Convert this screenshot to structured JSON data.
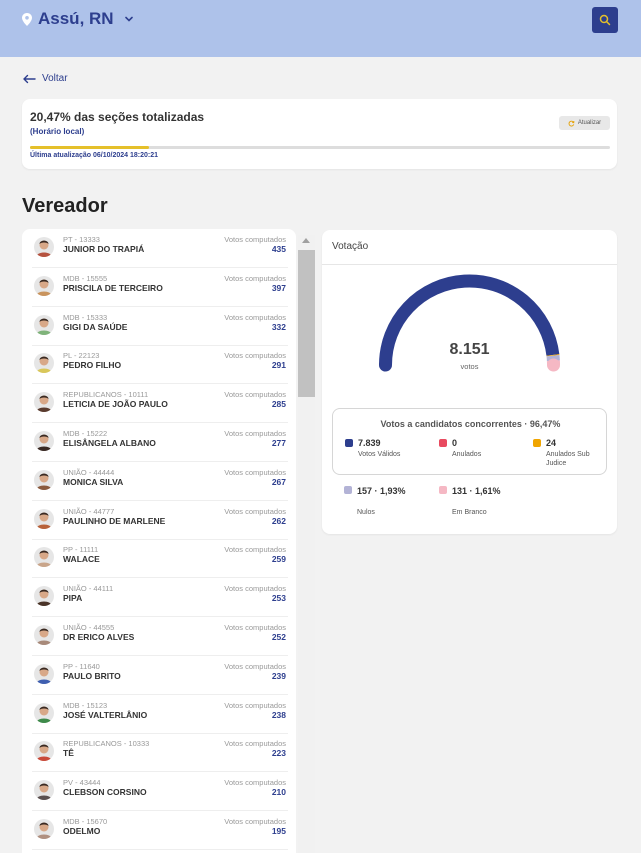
{
  "header": {
    "city": "Assú, RN",
    "icons": {
      "location": "map-pin-icon",
      "dropdown": "chevron-down-icon",
      "search": "search-icon"
    },
    "colors": {
      "brand": "#2d3e8e",
      "bar": "#aec2ea",
      "search_icon": "#e5c02a"
    }
  },
  "nav": {
    "back_label": "Voltar",
    "back_icon": "arrow-left-icon"
  },
  "status": {
    "title": "20,47% das seções totalizadas",
    "subtitle": "(Horário local)",
    "refresh_label": "Atualizar",
    "refresh_icon": "refresh-icon",
    "progress_fraction": 0.2047,
    "last_update": "Última atualização 06/10/2024 18:20:21"
  },
  "section": {
    "title": "Vereador"
  },
  "candidates": [
    {
      "party": "PT - 13333",
      "name": "JUNIOR DO TRAPIÁ",
      "votes_label": "Votos computados",
      "votes": "435",
      "avatar_color": "#b5523f"
    },
    {
      "party": "MDB - 15555",
      "name": "PRISCILA DE TERCEIRO",
      "votes_label": "Votos computados",
      "votes": "397",
      "avatar_color": "#c9945e"
    },
    {
      "party": "MDB - 15333",
      "name": "GIGI DA SAÚDE",
      "votes_label": "Votos computados",
      "votes": "332",
      "avatar_color": "#7fb37a"
    },
    {
      "party": "PL - 22123",
      "name": "PEDRO FILHO",
      "votes_label": "Votos computados",
      "votes": "291",
      "avatar_color": "#d9c75a"
    },
    {
      "party": "REPUBLICANOS - 10111",
      "name": "LETICIA DE JOÃO PAULO",
      "votes_label": "Votos computados",
      "votes": "285",
      "avatar_color": "#5a3b2e"
    },
    {
      "party": "MDB - 15222",
      "name": "ELISÂNGELA ALBANO",
      "votes_label": "Votos computados",
      "votes": "277",
      "avatar_color": "#3a2a24"
    },
    {
      "party": "UNIÃO - 44444",
      "name": "MONICA SILVA",
      "votes_label": "Votos computados",
      "votes": "267",
      "avatar_color": "#8a5a3e"
    },
    {
      "party": "UNIÃO - 44777",
      "name": "PAULINHO DE MARLENE",
      "votes_label": "Votos computados",
      "votes": "262",
      "avatar_color": "#b8623a"
    },
    {
      "party": "PP - 11111",
      "name": "WALACE",
      "votes_label": "Votos computados",
      "votes": "259",
      "avatar_color": "#c9a58a"
    },
    {
      "party": "UNIÃO - 44111",
      "name": "PIPA",
      "votes_label": "Votos computados",
      "votes": "253",
      "avatar_color": "#4a3428"
    },
    {
      "party": "UNIÃO - 44555",
      "name": "DR ERICO ALVES",
      "votes_label": "Votos computados",
      "votes": "252",
      "avatar_color": "#a88a7a"
    },
    {
      "party": "PP - 11640",
      "name": "PAULO BRITO",
      "votes_label": "Votos computados",
      "votes": "239",
      "avatar_color": "#3f5fb0"
    },
    {
      "party": "MDB - 15123",
      "name": "JOSÉ VALTERLÂNIO",
      "votes_label": "Votos computados",
      "votes": "238",
      "avatar_color": "#3e8a4a"
    },
    {
      "party": "REPUBLICANOS - 10333",
      "name": "TÊ",
      "votes_label": "Votos computados",
      "votes": "223",
      "avatar_color": "#c94a3a"
    },
    {
      "party": "PV - 43444",
      "name": "CLEBSON CORSINO",
      "votes_label": "Votos computados",
      "votes": "210",
      "avatar_color": "#5a5050"
    },
    {
      "party": "MDB - 15670",
      "name": "ODELMO",
      "votes_label": "Votos computados",
      "votes": "195",
      "avatar_color": "#b09080"
    }
  ],
  "votacao": {
    "title": "Votação",
    "total": "8.151",
    "total_label": "votos",
    "gauge_segments": [
      {
        "name": "Votos Válidos",
        "value": 7839,
        "color": "#2d3e8e"
      },
      {
        "name": "Anulados",
        "value": 0,
        "color": "#e84a5f"
      },
      {
        "name": "Anulados Sub Judice",
        "value": 24,
        "color": "#f0a500"
      },
      {
        "name": "Nulos",
        "value": 157,
        "color": "#b3b3d6"
      },
      {
        "name": "Em Branco",
        "value": 131,
        "color": "#f5b8c4"
      }
    ],
    "concur_title": "Votos a candidatos concorrentes · 96,47%",
    "legend": [
      {
        "value": "7.839",
        "label": "Votos Válidos",
        "color": "#2d3e8e"
      },
      {
        "value": "0",
        "label": "Anulados",
        "color": "#e84a5f"
      },
      {
        "value": "24",
        "label": "Anulados Sub Judice",
        "color": "#f0a500"
      }
    ],
    "legend_extra": [
      {
        "value": "157 · 1,93%",
        "label": "Nulos",
        "color": "#b3b3d6"
      },
      {
        "value": "131 · 1,61%",
        "label": "Em Branco",
        "color": "#f5b8c4"
      }
    ]
  }
}
